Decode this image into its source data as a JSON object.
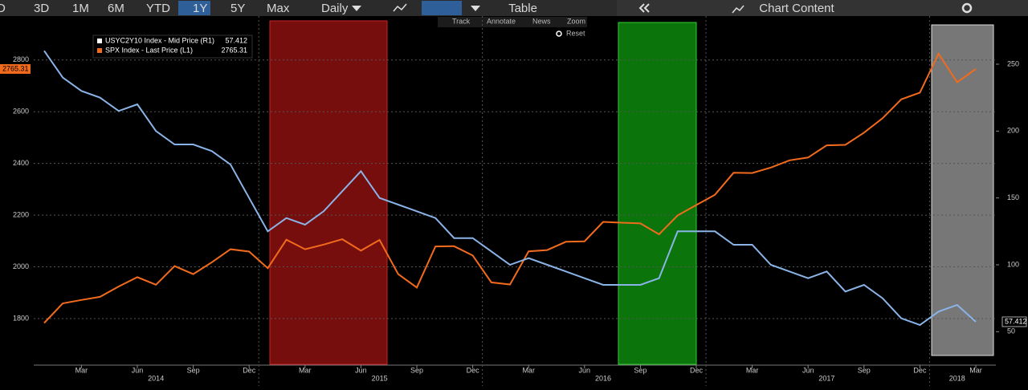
{
  "toolbar": {
    "ranges": [
      "D",
      "3D",
      "1M",
      "6M",
      "YTD",
      "1Y",
      "5Y",
      "Max"
    ],
    "frequency": "Daily",
    "table": "Table",
    "panel": "Chart Content",
    "tools": [
      "Track",
      "Annotate",
      "News",
      "Zoom"
    ],
    "reset": "Reset"
  },
  "chart_data": {
    "type": "line",
    "x": [
      "2014-01",
      "2014-02",
      "2014-03",
      "2014-04",
      "2014-05",
      "2014-06",
      "2014-07",
      "2014-08",
      "2014-09",
      "2014-10",
      "2014-11",
      "2014-12",
      "2015-01",
      "2015-02",
      "2015-03",
      "2015-04",
      "2015-05",
      "2015-06",
      "2015-07",
      "2015-08",
      "2015-09",
      "2015-10",
      "2015-11",
      "2015-12",
      "2016-01",
      "2016-02",
      "2016-03",
      "2016-04",
      "2016-05",
      "2016-06",
      "2016-07",
      "2016-08",
      "2016-09",
      "2016-10",
      "2016-11",
      "2016-12",
      "2017-01",
      "2017-02",
      "2017-03",
      "2017-04",
      "2017-05",
      "2017-06",
      "2017-07",
      "2017-08",
      "2017-09",
      "2017-10",
      "2017-11",
      "2017-12",
      "2018-01",
      "2018-02",
      "2018-03"
    ],
    "series": [
      {
        "name": "SPX Index - Last Price (L1)",
        "color": "#f26b1d",
        "values": [
          1783,
          1859,
          1872,
          1884,
          1924,
          1960,
          1931,
          2003,
          1972,
          2018,
          2068,
          2059,
          1995,
          2105,
          2068,
          2086,
          2107,
          2063,
          2104,
          1972,
          1920,
          2079,
          2080,
          2044,
          1940,
          1932,
          2060,
          2065,
          2097,
          2099,
          2174,
          2171,
          2168,
          2126,
          2199,
          2239,
          2279,
          2364,
          2363,
          2384,
          2412,
          2423,
          2470,
          2472,
          2519,
          2575,
          2648,
          2674,
          2824,
          2714,
          2765.31
        ]
      },
      {
        "name": "USYC2Y10 Index - Mid Price (R1)",
        "color": "#8ab4e8",
        "axis": "y2",
        "values": [
          260,
          240,
          230,
          225,
          215,
          220,
          200,
          190,
          190,
          185,
          175,
          150,
          125,
          135,
          130,
          140,
          155,
          170,
          150,
          145,
          140,
          135,
          120,
          120,
          110,
          100,
          105,
          100,
          95,
          90,
          85,
          85,
          85,
          90,
          125,
          125,
          125,
          115,
          115,
          100,
          95,
          90,
          95,
          80,
          85,
          75,
          60,
          55,
          65,
          70,
          57.412
        ]
      }
    ],
    "ylim": [
      1620,
      2970
    ],
    "yticks": [
      1800,
      2000,
      2200,
      2400,
      2600,
      2800
    ],
    "y2lim": [
      25,
      286
    ],
    "y2ticks": [
      50,
      100,
      150,
      200,
      250
    ],
    "xticks": [
      {
        "value": "2014-03",
        "label": "Mar"
      },
      {
        "value": "2014-06",
        "label": "Jun"
      },
      {
        "value": "2014-09",
        "label": "Sep"
      },
      {
        "value": "2014-12",
        "label": "Dec"
      },
      {
        "value": "2015-03",
        "label": "Mar"
      },
      {
        "value": "2015-06",
        "label": "Jun"
      },
      {
        "value": "2015-09",
        "label": "Sep"
      },
      {
        "value": "2015-12",
        "label": "Dec"
      },
      {
        "value": "2016-03",
        "label": "Mar"
      },
      {
        "value": "2016-06",
        "label": "Jun"
      },
      {
        "value": "2016-09",
        "label": "Sep"
      },
      {
        "value": "2016-12",
        "label": "Dec"
      },
      {
        "value": "2017-03",
        "label": "Mar"
      },
      {
        "value": "2017-06",
        "label": "Jun"
      },
      {
        "value": "2017-09",
        "label": "Sep"
      },
      {
        "value": "2017-12",
        "label": "Dec"
      },
      {
        "value": "2018-03",
        "label": "Mar"
      }
    ],
    "year_labels": [
      {
        "value": "2014-07",
        "label": "2014"
      },
      {
        "value": "2015-07",
        "label": "2015"
      },
      {
        "value": "2016-07",
        "label": "2016"
      },
      {
        "value": "2017-07",
        "label": "2017"
      },
      {
        "value": "2018-02",
        "label": "2018"
      }
    ],
    "grid": true
  }
}
